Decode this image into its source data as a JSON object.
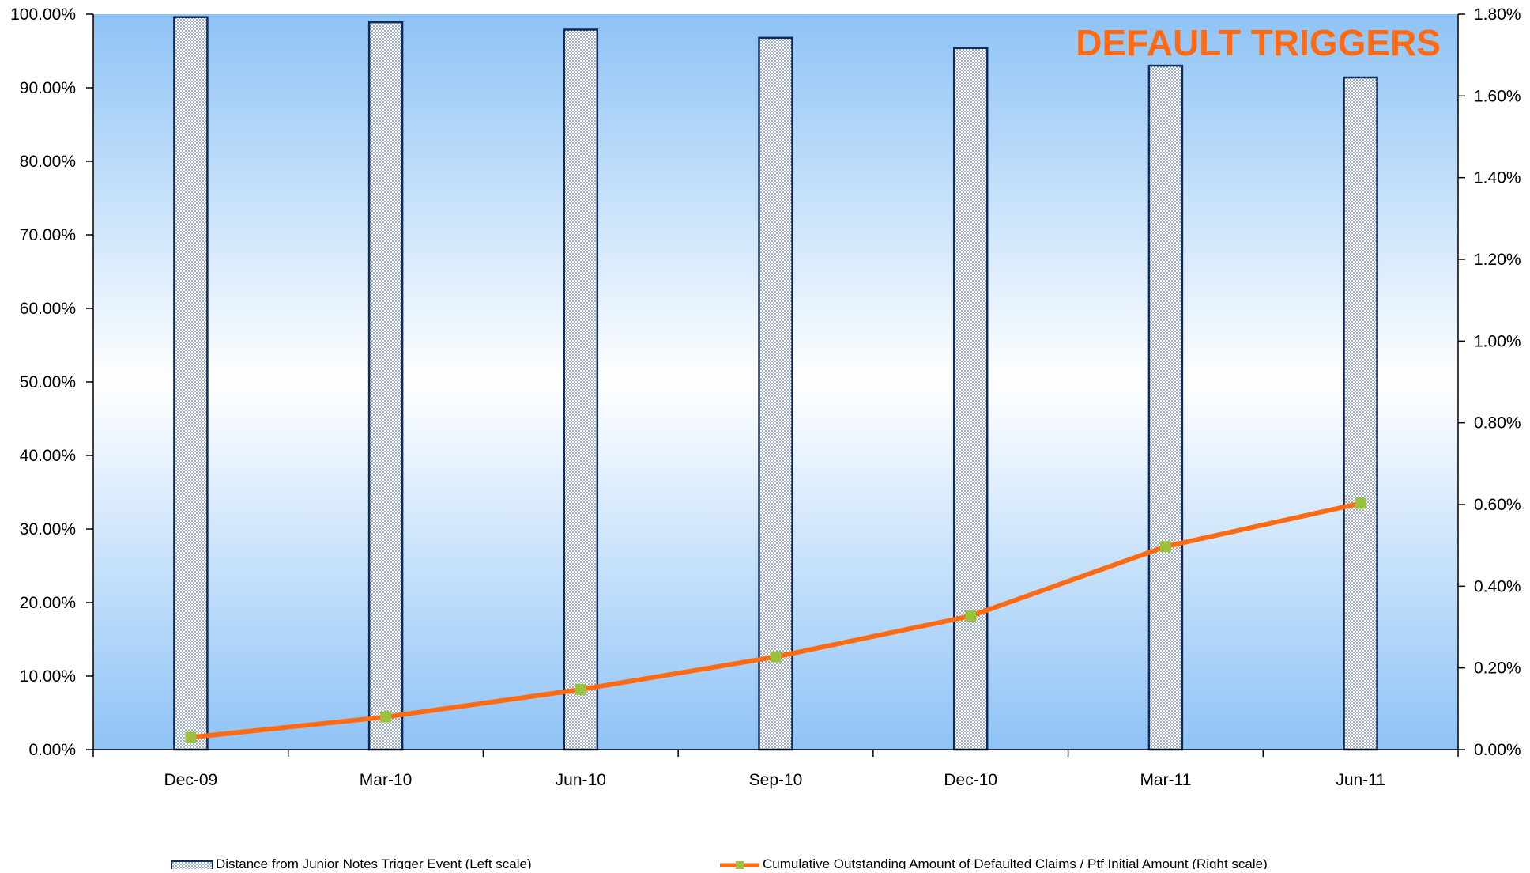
{
  "chart_data": {
    "type": "bar+line",
    "title": "DEFAULT TRIGGERS",
    "categories": [
      "Dec-09",
      "Mar-10",
      "Jun-10",
      "Sep-10",
      "Dec-10",
      "Mar-11",
      "Jun-11"
    ],
    "series": [
      {
        "name": "Distance from Junior Notes Trigger Event (Left scale)",
        "type": "bar",
        "axis": "left",
        "values": [
          99.6,
          98.9,
          97.9,
          96.8,
          95.4,
          93.0,
          91.4
        ]
      },
      {
        "name": "Cumulative Outstanding Amount of Defaulted Claims / Ptf Initial Amount (Right scale)",
        "type": "line",
        "axis": "right",
        "values": [
          0.03,
          0.08,
          0.147,
          0.227,
          0.327,
          0.497,
          0.603
        ]
      }
    ],
    "left_axis": {
      "min": 0,
      "max": 100,
      "step": 10,
      "tick_labels": [
        "0.00%",
        "10.00%",
        "20.00%",
        "30.00%",
        "40.00%",
        "50.00%",
        "60.00%",
        "70.00%",
        "80.00%",
        "90.00%",
        "100.00%"
      ]
    },
    "right_axis": {
      "min": 0,
      "max": 1.8,
      "step": 0.2,
      "tick_labels": [
        "0.00%",
        "0.20%",
        "0.40%",
        "0.60%",
        "0.80%",
        "1.00%",
        "1.20%",
        "1.40%",
        "1.60%",
        "1.80%"
      ]
    },
    "grid": false,
    "legend_position": "bottom",
    "colors": {
      "title": "#ff6a13",
      "line": "#ff6a13",
      "marker": "#9ac23c",
      "bar_stroke": "#0d2b5a",
      "plot_background_edge": "#8ec3f6",
      "plot_background_center": "#ffffff"
    }
  }
}
